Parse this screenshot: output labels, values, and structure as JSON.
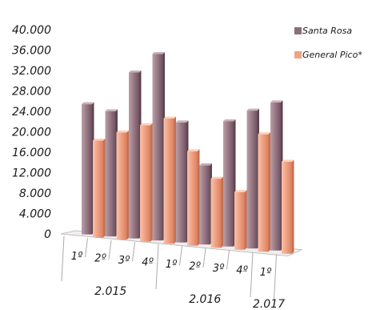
{
  "chart_data": {
    "type": "bar",
    "categories": [
      "1º",
      "2º",
      "3º",
      "4º",
      "1º",
      "2º",
      "3º",
      "4º",
      "1º"
    ],
    "groups": [
      {
        "label": "2.015",
        "count": 4
      },
      {
        "label": "2.016",
        "count": 4
      },
      {
        "label": "2.017",
        "count": 1
      }
    ],
    "series": [
      {
        "name": "Santa Rosa",
        "color": "#9a7a86",
        "values": [
          25500,
          24500,
          32500,
          36500,
          23500,
          15500,
          24500,
          27000,
          29000
        ]
      },
      {
        "name": "General Pico*",
        "color": "#f0a283",
        "values": [
          19000,
          21000,
          22800,
          24500,
          18500,
          13500,
          11300,
          23000,
          18000
        ]
      }
    ],
    "ylim": [
      0,
      40000
    ],
    "yticks": [
      "0",
      "4.000",
      "8.000",
      "12.000",
      "16.000",
      "20.000",
      "24.000",
      "28.000",
      "32.000",
      "36.000",
      "40.000"
    ],
    "legend_position": "top-right",
    "grid": false
  }
}
